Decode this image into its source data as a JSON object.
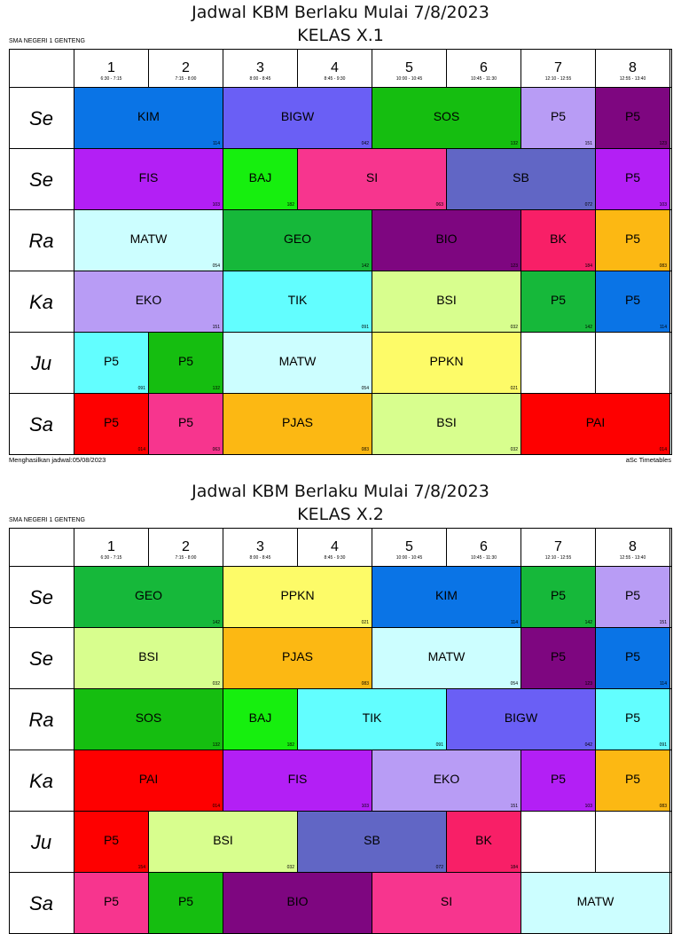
{
  "periods": [
    {
      "num": "1",
      "time": "6:30 - 7:15"
    },
    {
      "num": "2",
      "time": "7:15 - 8:00"
    },
    {
      "num": "3",
      "time": "8:00 - 8:45"
    },
    {
      "num": "4",
      "time": "8:45 - 9:30"
    },
    {
      "num": "5",
      "time": "10:00 - 10:45"
    },
    {
      "num": "6",
      "time": "10:45 - 11:30"
    },
    {
      "num": "7",
      "time": "12:10 - 12:55"
    },
    {
      "num": "8",
      "time": "12:55 - 13:40"
    }
  ],
  "colors": {
    "KIM": "#0a74e6",
    "BIGW": "#6a5ff5",
    "SOS": "#15be10",
    "P5_lav": "#b89cf5",
    "P5_purple": "#7e0680",
    "FIS": "#b31ff5",
    "BAJ": "#16ef0e",
    "SI": "#f7358e",
    "SB": "#6166c5",
    "MATW": "#ccfeff",
    "GEO": "#16b83a",
    "BIO": "#7e0680",
    "BK": "#f81f67",
    "P5_orange": "#fcb813",
    "EKO": "#b89cf5",
    "TIK": "#62feff",
    "BSI": "#d8fe8e",
    "P5_green": "#16b83a",
    "P5_blue": "#0a74e6",
    "P5_cyan": "#62feff",
    "PPKN": "#fdfb68",
    "P5_red": "#fe0000",
    "P5_pink": "#f7358e",
    "PJAS": "#fcb813",
    "PAI": "#fe0000",
    "empty": "#ffffff"
  },
  "sheets": [
    {
      "school": "SMA NEGERI 1 GENTENG",
      "title": "Jadwal KBM Berlaku Mulai 7/8/2023",
      "class": "KELAS X.1",
      "footer_left": "Menghasilkan jadwal:05/08/2023",
      "footer_right": "aSc Timetables",
      "rows": [
        {
          "day": "Se",
          "cells": [
            {
              "label": "KIM",
              "room": "114",
              "span": 2,
              "color": "KIM"
            },
            {
              "label": "BIGW",
              "room": "042",
              "span": 2,
              "color": "BIGW"
            },
            {
              "label": "SOS",
              "room": "132",
              "span": 2,
              "color": "SOS"
            },
            {
              "label": "P5",
              "room": "151",
              "span": 1,
              "color": "P5_lav"
            },
            {
              "label": "P5",
              "room": "123",
              "span": 1,
              "color": "P5_purple"
            }
          ]
        },
        {
          "day": "Se",
          "cells": [
            {
              "label": "FIS",
              "room": "103",
              "span": 2,
              "color": "FIS"
            },
            {
              "label": "BAJ",
              "room": "182",
              "span": 1,
              "color": "BAJ"
            },
            {
              "label": "SI",
              "room": "063",
              "span": 2,
              "color": "SI"
            },
            {
              "label": "SB",
              "room": "072",
              "span": 2,
              "color": "SB"
            },
            {
              "label": "P5",
              "room": "103",
              "span": 1,
              "color": "FIS"
            }
          ]
        },
        {
          "day": "Ra",
          "cells": [
            {
              "label": "MATW",
              "room": "054",
              "span": 2,
              "color": "MATW"
            },
            {
              "label": "GEO",
              "room": "142",
              "span": 2,
              "color": "GEO"
            },
            {
              "label": "BIO",
              "room": "123",
              "span": 2,
              "color": "BIO"
            },
            {
              "label": "BK",
              "room": "184",
              "span": 1,
              "color": "BK"
            },
            {
              "label": "P5",
              "room": "083",
              "span": 1,
              "color": "P5_orange"
            }
          ]
        },
        {
          "day": "Ka",
          "cells": [
            {
              "label": "EKO",
              "room": "151",
              "span": 2,
              "color": "EKO"
            },
            {
              "label": "TIK",
              "room": "091",
              "span": 2,
              "color": "TIK"
            },
            {
              "label": "BSI",
              "room": "032",
              "span": 2,
              "color": "BSI"
            },
            {
              "label": "P5",
              "room": "142",
              "span": 1,
              "color": "P5_green"
            },
            {
              "label": "P5",
              "room": "114",
              "span": 1,
              "color": "P5_blue"
            }
          ]
        },
        {
          "day": "Ju",
          "cells": [
            {
              "label": "P5",
              "room": "091",
              "span": 1,
              "color": "P5_cyan"
            },
            {
              "label": "P5",
              "room": "132",
              "span": 1,
              "color": "SOS"
            },
            {
              "label": "MATW",
              "room": "054",
              "span": 2,
              "color": "MATW"
            },
            {
              "label": "PPKN",
              "room": "021",
              "span": 2,
              "color": "PPKN"
            },
            {
              "label": "",
              "room": "",
              "span": 1,
              "color": "empty"
            },
            {
              "label": "",
              "room": "",
              "span": 1,
              "color": "empty"
            }
          ]
        },
        {
          "day": "Sa",
          "cells": [
            {
              "label": "P5",
              "room": "014",
              "span": 1,
              "color": "P5_red"
            },
            {
              "label": "P5",
              "room": "063",
              "span": 1,
              "color": "P5_pink"
            },
            {
              "label": "PJAS",
              "room": "083",
              "span": 2,
              "color": "PJAS"
            },
            {
              "label": "BSI",
              "room": "032",
              "span": 2,
              "color": "BSI"
            },
            {
              "label": "PAI",
              "room": "014",
              "span": 2,
              "color": "PAI"
            }
          ]
        }
      ]
    },
    {
      "school": "SMA NEGERI 1 GENTENG",
      "title": "Jadwal KBM Berlaku Mulai 7/8/2023",
      "class": "KELAS X.2",
      "rows": [
        {
          "day": "Se",
          "cells": [
            {
              "label": "GEO",
              "room": "142",
              "span": 2,
              "color": "GEO"
            },
            {
              "label": "PPKN",
              "room": "021",
              "span": 2,
              "color": "PPKN"
            },
            {
              "label": "KIM",
              "room": "114",
              "span": 2,
              "color": "KIM"
            },
            {
              "label": "P5",
              "room": "142",
              "span": 1,
              "color": "P5_green"
            },
            {
              "label": "P5",
              "room": "151",
              "span": 1,
              "color": "P5_lav"
            }
          ]
        },
        {
          "day": "Se",
          "cells": [
            {
              "label": "BSI",
              "room": "032",
              "span": 2,
              "color": "BSI"
            },
            {
              "label": "PJAS",
              "room": "083",
              "span": 2,
              "color": "PJAS"
            },
            {
              "label": "MATW",
              "room": "054",
              "span": 2,
              "color": "MATW"
            },
            {
              "label": "P5",
              "room": "123",
              "span": 1,
              "color": "P5_purple"
            },
            {
              "label": "P5",
              "room": "114",
              "span": 1,
              "color": "P5_blue"
            }
          ]
        },
        {
          "day": "Ra",
          "cells": [
            {
              "label": "SOS",
              "room": "132",
              "span": 2,
              "color": "SOS"
            },
            {
              "label": "BAJ",
              "room": "182",
              "span": 1,
              "color": "BAJ"
            },
            {
              "label": "TIK",
              "room": "091",
              "span": 2,
              "color": "TIK"
            },
            {
              "label": "BIGW",
              "room": "042",
              "span": 2,
              "color": "BIGW"
            },
            {
              "label": "P5",
              "room": "091",
              "span": 1,
              "color": "P5_cyan"
            }
          ]
        },
        {
          "day": "Ka",
          "cells": [
            {
              "label": "PAI",
              "room": "014",
              "span": 2,
              "color": "PAI"
            },
            {
              "label": "FIS",
              "room": "103",
              "span": 2,
              "color": "FIS"
            },
            {
              "label": "EKO",
              "room": "151",
              "span": 2,
              "color": "EKO"
            },
            {
              "label": "P5",
              "room": "103",
              "span": 1,
              "color": "FIS"
            },
            {
              "label": "P5",
              "room": "083",
              "span": 1,
              "color": "P5_orange"
            }
          ]
        },
        {
          "day": "Ju",
          "cells": [
            {
              "label": "P5",
              "room": "154",
              "span": 1,
              "color": "P5_red"
            },
            {
              "label": "BSI",
              "room": "032",
              "span": 2,
              "color": "BSI"
            },
            {
              "label": "SB",
              "room": "072",
              "span": 2,
              "color": "SB"
            },
            {
              "label": "BK",
              "room": "184",
              "span": 1,
              "color": "BK"
            },
            {
              "label": "",
              "room": "",
              "span": 1,
              "color": "empty"
            },
            {
              "label": "",
              "room": "",
              "span": 1,
              "color": "empty"
            }
          ]
        },
        {
          "day": "Sa",
          "cells": [
            {
              "label": "P5",
              "room": "",
              "span": 1,
              "color": "P5_pink"
            },
            {
              "label": "P5",
              "room": "",
              "span": 1,
              "color": "SOS"
            },
            {
              "label": "BIO",
              "room": "",
              "span": 2,
              "color": "BIO"
            },
            {
              "label": "SI",
              "room": "",
              "span": 2,
              "color": "SI"
            },
            {
              "label": "MATW",
              "room": "",
              "span": 2,
              "color": "MATW"
            }
          ]
        }
      ]
    }
  ]
}
